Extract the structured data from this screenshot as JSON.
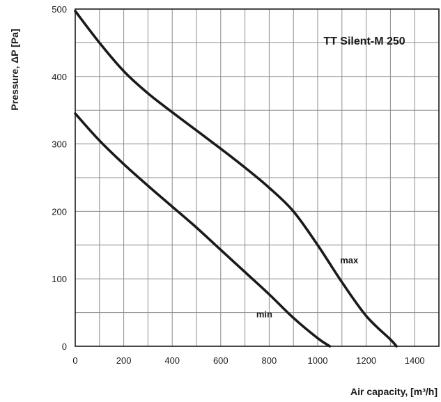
{
  "chart_data": {
    "type": "line",
    "title": "TT Silent-M 250",
    "xlabel": "Air capacity, [m³/h]",
    "ylabel": "Pressure, ΔP [Pa]",
    "xlim": [
      0,
      1500
    ],
    "ylim": [
      0,
      500
    ],
    "x_ticks": [
      0,
      200,
      400,
      600,
      800,
      1000,
      1200,
      1400
    ],
    "y_ticks": [
      0,
      100,
      200,
      300,
      400,
      500
    ],
    "grid": true,
    "series": [
      {
        "name": "max",
        "x": [
          0,
          100,
          200,
          300,
          400,
          500,
          600,
          700,
          800,
          900,
          1000,
          1100,
          1200,
          1300,
          1325
        ],
        "y": [
          497,
          450,
          408,
          375,
          347,
          320,
          293,
          265,
          235,
          200,
          150,
          95,
          45,
          10,
          0
        ]
      },
      {
        "name": "min",
        "x": [
          0,
          100,
          200,
          300,
          400,
          500,
          600,
          700,
          800,
          900,
          1000,
          1050
        ],
        "y": [
          345,
          305,
          270,
          238,
          207,
          176,
          143,
          110,
          77,
          42,
          12,
          0
        ]
      }
    ],
    "annotations": [
      {
        "text": "max",
        "x": 1130,
        "y": 123
      },
      {
        "text": "min",
        "x": 780,
        "y": 43
      }
    ]
  }
}
